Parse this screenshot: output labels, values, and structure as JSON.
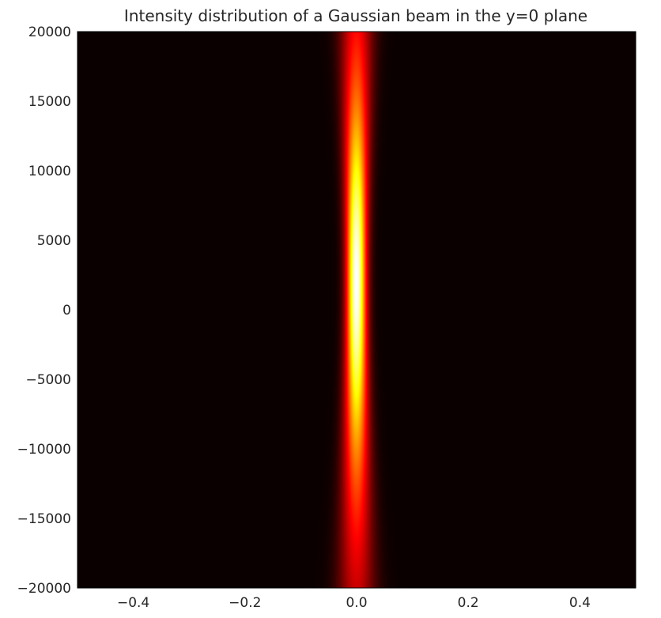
{
  "chart_data": {
    "type": "heatmap",
    "title": "Intensity distribution of a Gaussian beam in the y=0 plane",
    "xlabel": "",
    "ylabel": "",
    "xlim": [
      -0.5,
      0.5
    ],
    "ylim": [
      -20000,
      20000
    ],
    "x_ticks": [
      -0.4,
      -0.2,
      0.0,
      0.2,
      0.4
    ],
    "x_tick_labels": [
      "−0.4",
      "−0.2",
      "0.0",
      "0.2",
      "0.4"
    ],
    "y_ticks": [
      20000,
      15000,
      10000,
      5000,
      0,
      -5000,
      -10000,
      -15000,
      -20000
    ],
    "y_tick_labels": [
      "20000",
      "15000",
      "10000",
      "5000",
      "0",
      "−5000",
      "−10000",
      "−15000",
      "−20000"
    ],
    "colormap": "hot",
    "grid": false,
    "beam": {
      "center_x": 0.0,
      "waist_z": 2000,
      "waist_radius": 0.025,
      "rayleigh_range": 14000
    }
  }
}
